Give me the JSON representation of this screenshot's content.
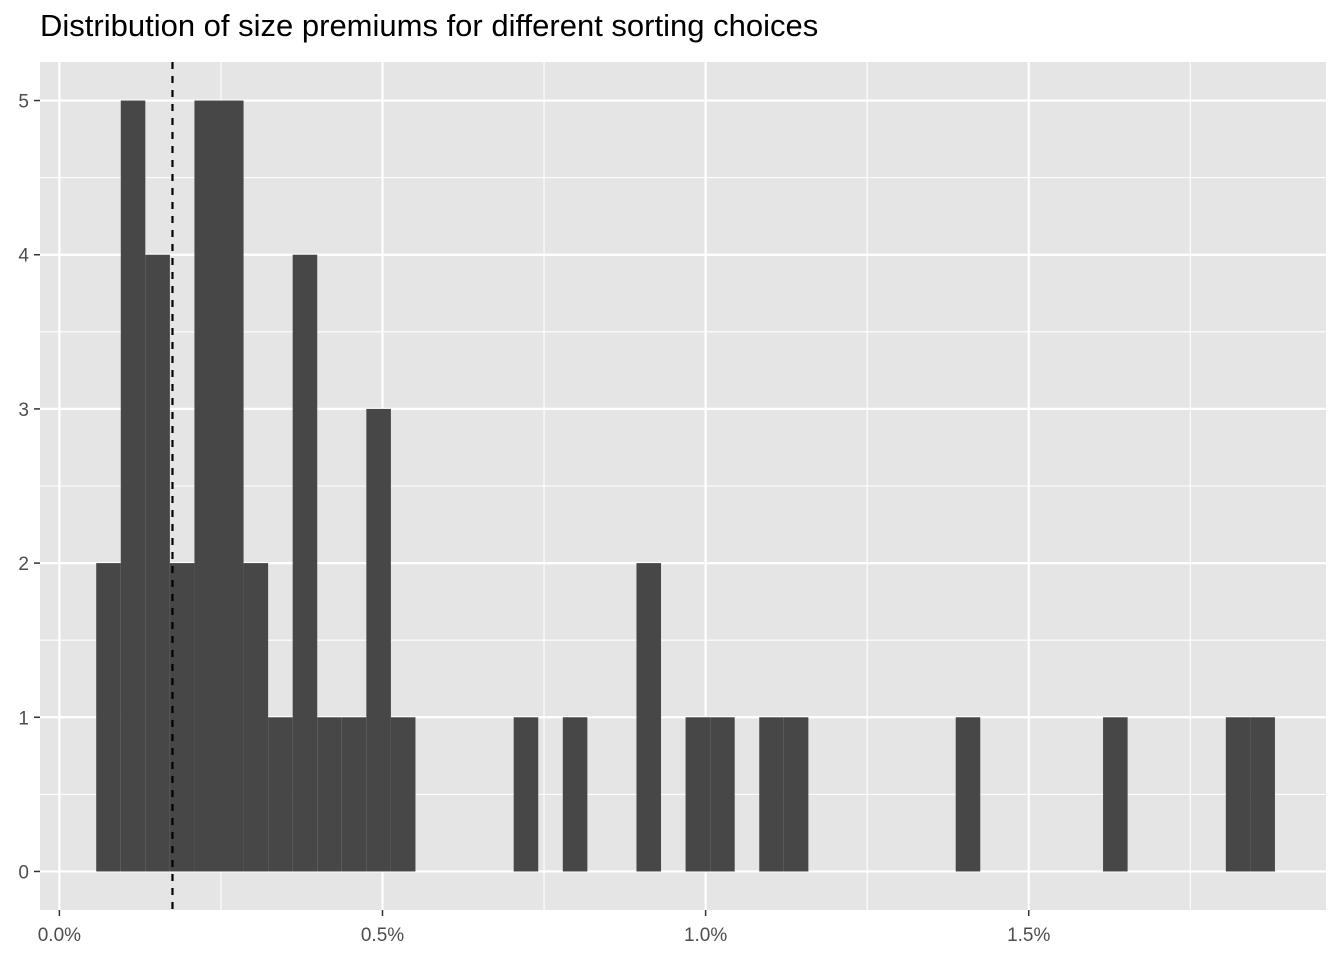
{
  "title": "Distribution of size premiums for different sorting choices",
  "chart_data": {
    "type": "bar",
    "subtype": "histogram",
    "title": "Distribution of size premiums for different sorting choices",
    "xlabel": "",
    "ylabel": "",
    "bin_width": 0.038,
    "bins": [
      {
        "x0": 0.057,
        "x1": 0.095,
        "count": 2
      },
      {
        "x0": 0.095,
        "x1": 0.133,
        "count": 5
      },
      {
        "x0": 0.133,
        "x1": 0.171,
        "count": 4
      },
      {
        "x0": 0.171,
        "x1": 0.209,
        "count": 2
      },
      {
        "x0": 0.209,
        "x1": 0.247,
        "count": 5
      },
      {
        "x0": 0.247,
        "x1": 0.285,
        "count": 5
      },
      {
        "x0": 0.285,
        "x1": 0.323,
        "count": 2
      },
      {
        "x0": 0.323,
        "x1": 0.361,
        "count": 1
      },
      {
        "x0": 0.361,
        "x1": 0.399,
        "count": 4
      },
      {
        "x0": 0.399,
        "x1": 0.437,
        "count": 1
      },
      {
        "x0": 0.437,
        "x1": 0.475,
        "count": 1
      },
      {
        "x0": 0.475,
        "x1": 0.513,
        "count": 3
      },
      {
        "x0": 0.513,
        "x1": 0.551,
        "count": 1
      },
      {
        "x0": 0.703,
        "x1": 0.741,
        "count": 1
      },
      {
        "x0": 0.779,
        "x1": 0.817,
        "count": 1
      },
      {
        "x0": 0.893,
        "x1": 0.931,
        "count": 2
      },
      {
        "x0": 0.969,
        "x1": 1.007,
        "count": 1
      },
      {
        "x0": 1.007,
        "x1": 1.045,
        "count": 1
      },
      {
        "x0": 1.083,
        "x1": 1.121,
        "count": 1
      },
      {
        "x0": 1.121,
        "x1": 1.159,
        "count": 1
      },
      {
        "x0": 1.387,
        "x1": 1.425,
        "count": 1
      },
      {
        "x0": 1.615,
        "x1": 1.653,
        "count": 1
      },
      {
        "x0": 1.805,
        "x1": 1.843,
        "count": 1
      },
      {
        "x0": 1.843,
        "x1": 1.881,
        "count": 1
      }
    ],
    "reference_line": {
      "x": 0.175,
      "style": "dashed",
      "color": "#000000"
    },
    "xlim": [
      -0.03,
      1.96
    ],
    "ylim": [
      -0.25,
      5.25
    ],
    "x_ticks": [
      {
        "value": 0.0,
        "label": "0.0%"
      },
      {
        "value": 0.5,
        "label": "0.5%"
      },
      {
        "value": 1.0,
        "label": "1.0%"
      },
      {
        "value": 1.5,
        "label": "1.5%"
      }
    ],
    "x_minor_ticks": [
      0.25,
      0.75,
      1.25,
      1.75
    ],
    "y_ticks": [
      {
        "value": 0,
        "label": "0"
      },
      {
        "value": 1,
        "label": "1"
      },
      {
        "value": 2,
        "label": "2"
      },
      {
        "value": 3,
        "label": "3"
      },
      {
        "value": 4,
        "label": "4"
      },
      {
        "value": 5,
        "label": "5"
      }
    ],
    "y_minor_ticks": [
      0.5,
      1.5,
      2.5,
      3.5,
      4.5
    ],
    "grid": true,
    "colors": {
      "bar": "#474747",
      "panel": "#e5e5e5",
      "grid": "#ffffff",
      "tick_text": "#4d4d4d"
    }
  }
}
